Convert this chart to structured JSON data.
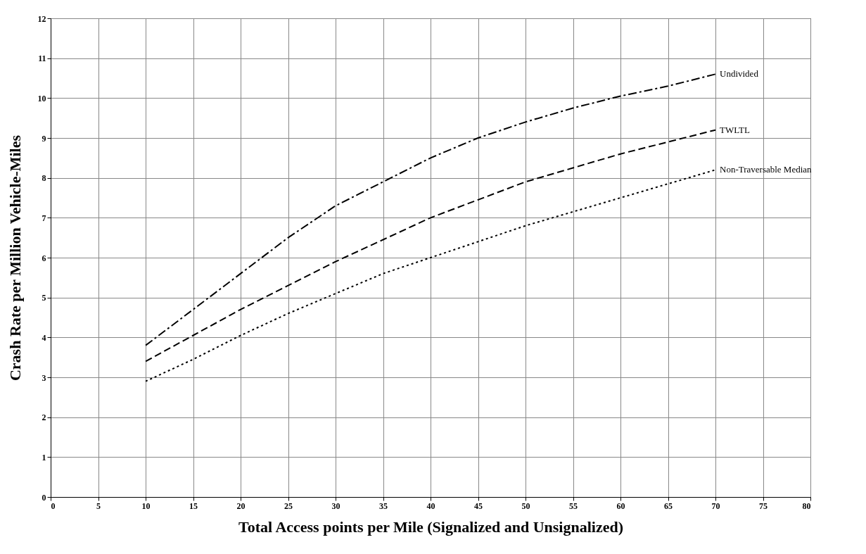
{
  "chart_data": {
    "type": "line",
    "xlabel": "Total Access points per Mile (Signalized and Unsignalized)",
    "ylabel": "Crash Rate per Million Vehicle-Miles",
    "x": [
      10,
      15,
      20,
      25,
      30,
      35,
      40,
      45,
      50,
      55,
      60,
      65,
      70
    ],
    "series": [
      {
        "name": "Undivided",
        "color": "#000000",
        "line_style": "dashdot",
        "values": [
          3.8,
          4.7,
          5.6,
          6.5,
          7.3,
          7.9,
          8.5,
          9.0,
          9.4,
          9.75,
          10.05,
          10.3,
          10.6
        ]
      },
      {
        "name": "TWLTL",
        "color": "#000000",
        "line_style": "dashed",
        "values": [
          3.4,
          4.05,
          4.7,
          5.3,
          5.9,
          6.45,
          7.0,
          7.45,
          7.9,
          8.25,
          8.6,
          8.9,
          9.2
        ]
      },
      {
        "name": "Non-Traversable Median",
        "color": "#000000",
        "line_style": "dotted",
        "values": [
          2.9,
          3.45,
          4.05,
          4.6,
          5.1,
          5.6,
          6.0,
          6.4,
          6.8,
          7.15,
          7.5,
          7.85,
          8.2
        ]
      }
    ],
    "xlim": [
      0,
      80
    ],
    "xticks": [
      0,
      5,
      10,
      15,
      20,
      25,
      30,
      35,
      40,
      45,
      50,
      55,
      60,
      65,
      70,
      75,
      80
    ],
    "ylim": [
      0,
      12
    ],
    "yticks": [
      0,
      1,
      2,
      3,
      4,
      5,
      6,
      7,
      8,
      9,
      10,
      11,
      12
    ],
    "grid": true
  }
}
